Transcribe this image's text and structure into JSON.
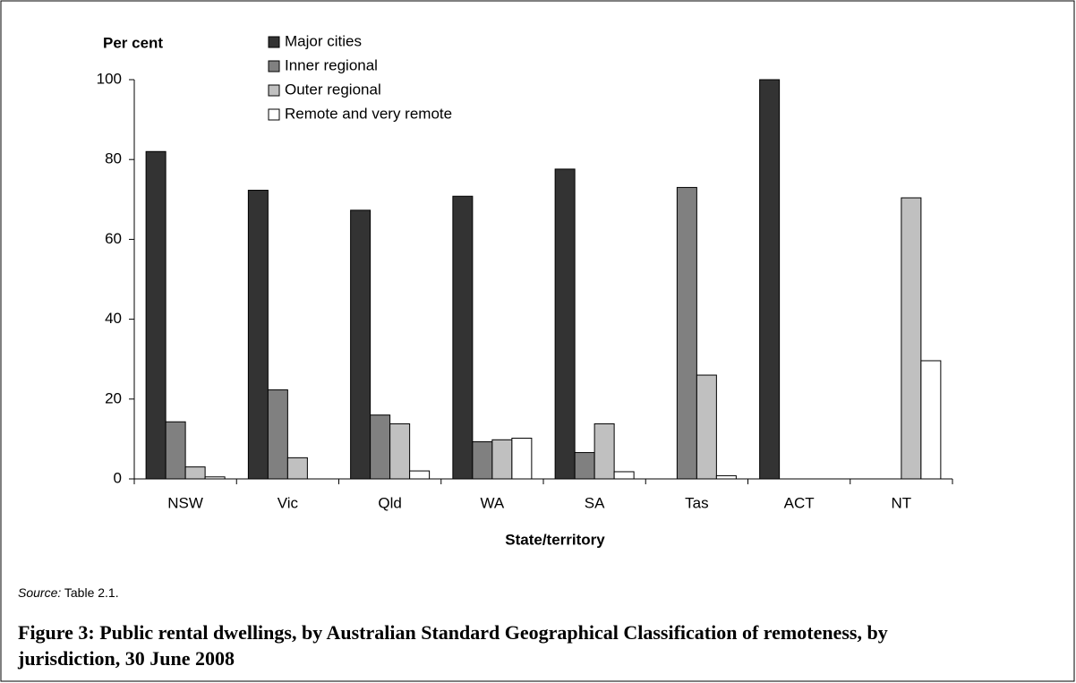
{
  "chart_data": {
    "type": "bar",
    "y_axis_label": "Per cent",
    "x_axis_label": "State/territory",
    "categories": [
      "NSW",
      "Vic",
      "Qld",
      "WA",
      "SA",
      "Tas",
      "ACT",
      "NT"
    ],
    "series": [
      {
        "name": "Major cities",
        "color": "#333333",
        "values": [
          82,
          72.3,
          67.3,
          70.8,
          77.6,
          0,
          100,
          0
        ]
      },
      {
        "name": "Inner regional",
        "color": "#808080",
        "values": [
          14.3,
          22.3,
          16,
          9.3,
          6.6,
          73,
          0,
          0
        ]
      },
      {
        "name": "Outer regional",
        "color": "#c0c0c0",
        "values": [
          3,
          5.3,
          13.8,
          9.8,
          13.8,
          26,
          0,
          70.4
        ]
      },
      {
        "name": "Remote and very remote",
        "color": "#ffffff",
        "values": [
          0.5,
          0,
          2,
          10.2,
          1.8,
          0.8,
          0,
          29.6
        ]
      }
    ],
    "ylim": [
      0,
      100
    ],
    "yticks": [
      0,
      20,
      40,
      60,
      80,
      100
    ],
    "grid": false,
    "legend": "top"
  },
  "source": {
    "label": "Source:",
    "text": "Table 2.1."
  },
  "caption": "Figure 3: Public rental dwellings, by Australian Standard Geographical Classification of remoteness, by jurisdiction, 30 June 2008"
}
